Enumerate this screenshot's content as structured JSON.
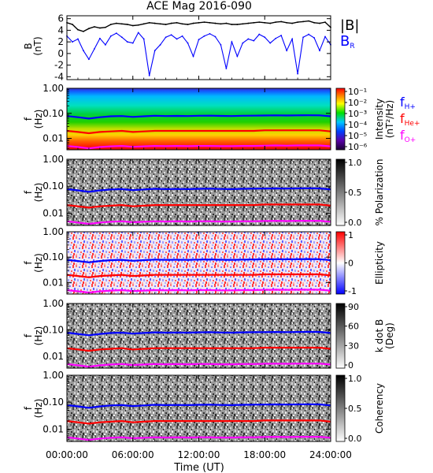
{
  "title": "ACE Mag 2016-090",
  "colors": {
    "bmag": "#000000",
    "br": "#0000ff",
    "fH": "#0000ff",
    "fHe": "#ff0000",
    "fO": "#ff00ff"
  },
  "chart_data": [
    {
      "type": "line",
      "panel": "magnetic-field",
      "ylabel": "B",
      "yunit": "(nT)",
      "ylim": [
        -4.5,
        6.5
      ],
      "yticks": [
        "6",
        "4",
        "2",
        "0",
        "-2",
        "-4"
      ],
      "ytick_values": [
        6,
        4,
        2,
        0,
        -2,
        -4
      ],
      "legend": [
        "|B|",
        "B_R"
      ],
      "series": [
        {
          "name": "|B|",
          "x_hours": [
            0,
            0.5,
            1,
            1.5,
            2,
            2.5,
            3,
            3.5,
            4,
            4.5,
            5,
            5.5,
            6,
            6.5,
            7,
            7.5,
            8,
            8.5,
            9,
            9.5,
            10,
            10.5,
            11,
            11.5,
            12,
            12.5,
            13,
            13.5,
            14,
            14.5,
            15,
            15.5,
            16,
            16.5,
            17,
            17.5,
            18,
            18.5,
            19,
            19.5,
            20,
            20.5,
            21,
            21.5,
            22,
            22.5,
            23,
            23.5,
            24
          ],
          "values": [
            5.3,
            5.0,
            4.1,
            3.8,
            4.3,
            4.6,
            4.4,
            4.5,
            5.0,
            5.2,
            5.1,
            5.0,
            4.8,
            4.9,
            5.1,
            5.3,
            5.2,
            5.1,
            5.0,
            5.2,
            5.3,
            5.1,
            5.0,
            5.2,
            5.3,
            5.4,
            5.3,
            5.2,
            5.1,
            5.2,
            5.0,
            5.0,
            5.1,
            5.2,
            5.3,
            5.4,
            5.3,
            5.2,
            5.4,
            5.5,
            5.3,
            5.2,
            5.4,
            5.5,
            5.6,
            5.3,
            5.2,
            5.4,
            4.5
          ]
        },
        {
          "name": "B_R",
          "x_hours": [
            0,
            0.5,
            1,
            1.5,
            2,
            2.5,
            3,
            3.5,
            4,
            4.5,
            5,
            5.5,
            6,
            6.5,
            7,
            7.5,
            8,
            8.5,
            9,
            9.5,
            10,
            10.5,
            11,
            11.5,
            12,
            12.5,
            13,
            13.5,
            14,
            14.5,
            15,
            15.5,
            16,
            16.5,
            17,
            17.5,
            18,
            18.5,
            19,
            19.5,
            20,
            20.5,
            21,
            21.5,
            22,
            22.5,
            23,
            23.5,
            24
          ],
          "values": [
            3.0,
            2.0,
            2.5,
            0.5,
            -1.0,
            0.8,
            2.6,
            1.5,
            3.0,
            3.5,
            2.8,
            2.0,
            1.8,
            3.6,
            2.5,
            -3.8,
            0.5,
            1.5,
            2.8,
            3.2,
            2.5,
            3.0,
            1.8,
            -0.5,
            2.4,
            3.0,
            3.4,
            2.9,
            1.5,
            -2.6,
            2.0,
            -0.5,
            1.8,
            2.5,
            2.2,
            3.3,
            2.8,
            1.8,
            2.6,
            3.1,
            0.5,
            2.5,
            -3.5,
            2.8,
            3.3,
            2.7,
            0.5,
            2.9,
            1.5
          ]
        }
      ]
    },
    {
      "type": "heatmap",
      "panel": "power-spectral-density",
      "ylabel": "f",
      "yunit": "(Hz)",
      "yscale": "log",
      "ylim": [
        0.0035,
        1.0
      ],
      "yticks": [
        "1.00",
        "0.10",
        "0.01"
      ],
      "colorbar_label": "Intensity",
      "colorbar_unit": "(nT²/Hz)",
      "colorbar_ticks": [
        "10⁻¹",
        "10⁻²",
        "10⁻³",
        "10⁻⁴",
        "10⁻⁵",
        "10⁻⁶"
      ],
      "colorbar_scale": "log",
      "colormap": "rainbow",
      "legend": [
        "f_H+",
        "f_He+",
        "f_O+"
      ]
    },
    {
      "type": "heatmap",
      "panel": "polarization",
      "ylabel": "f",
      "yunit": "(Hz)",
      "yscale": "log",
      "ylim": [
        0.0035,
        1.0
      ],
      "yticks": [
        "1.00",
        "0.10",
        "0.01"
      ],
      "colorbar_label": "% Polarization",
      "colorbar_ticks": [
        "1.0",
        "0.5",
        "0.0"
      ],
      "colormap": "gray"
    },
    {
      "type": "heatmap",
      "panel": "ellipticity",
      "ylabel": "f",
      "yunit": "(Hz)",
      "yscale": "log",
      "ylim": [
        0.0035,
        1.0
      ],
      "yticks": [
        "1.00",
        "0.10",
        "0.01"
      ],
      "colorbar_label": "Ellipticity",
      "colorbar_ticks": [
        "1",
        "0",
        "-1"
      ],
      "colormap": "blue-white-red"
    },
    {
      "type": "heatmap",
      "panel": "wave-normal-angle",
      "ylabel": "f",
      "yunit": "(Hz)",
      "yscale": "log",
      "ylim": [
        0.0035,
        1.0
      ],
      "yticks": [
        "1.00",
        "0.10",
        "0.01"
      ],
      "colorbar_label": "k dot B",
      "colorbar_unit": "(Deg)",
      "colorbar_ticks": [
        "90",
        "60",
        "30",
        "0"
      ],
      "colormap": "gray"
    },
    {
      "type": "heatmap",
      "panel": "coherency",
      "ylabel": "f",
      "yunit": "(Hz)",
      "yscale": "log",
      "ylim": [
        0.0035,
        1.0
      ],
      "yticks": [
        "1.00",
        "0.10",
        "0.01"
      ],
      "colorbar_label": "Coherency",
      "colorbar_ticks": [
        "1.0",
        "0.5",
        "0.0"
      ],
      "colormap": "gray"
    }
  ],
  "gyrofrequency": {
    "x_hours": [
      0,
      1,
      2,
      3,
      4,
      5,
      6,
      7,
      8,
      9,
      10,
      11,
      12,
      13,
      14,
      15,
      16,
      17,
      18,
      19,
      20,
      21,
      22,
      23,
      24
    ],
    "fH_Hz": [
      0.078,
      0.07,
      0.062,
      0.07,
      0.076,
      0.078,
      0.072,
      0.076,
      0.08,
      0.078,
      0.079,
      0.078,
      0.08,
      0.081,
      0.079,
      0.078,
      0.08,
      0.081,
      0.082,
      0.083,
      0.082,
      0.083,
      0.084,
      0.083,
      0.076
    ],
    "fHe_Hz": [
      0.02,
      0.018,
      0.016,
      0.018,
      0.019,
      0.02,
      0.018,
      0.019,
      0.02,
      0.02,
      0.02,
      0.02,
      0.02,
      0.02,
      0.02,
      0.02,
      0.02,
      0.02,
      0.021,
      0.021,
      0.021,
      0.021,
      0.021,
      0.021,
      0.019
    ],
    "fO_Hz": [
      0.005,
      0.0045,
      0.004,
      0.0045,
      0.0048,
      0.005,
      0.0046,
      0.0048,
      0.005,
      0.0049,
      0.005,
      0.0049,
      0.005,
      0.005,
      0.0049,
      0.0049,
      0.005,
      0.005,
      0.0051,
      0.0052,
      0.0051,
      0.0052,
      0.0052,
      0.0052,
      0.0048
    ]
  },
  "xaxis": {
    "label": "Time (UT)",
    "ticks": [
      "00:00:00",
      "06:00:00",
      "12:00:00",
      "18:00:00",
      "24:00:00"
    ],
    "tick_hours": [
      0,
      6,
      12,
      18,
      24
    ],
    "range_hours": [
      0,
      24
    ]
  }
}
